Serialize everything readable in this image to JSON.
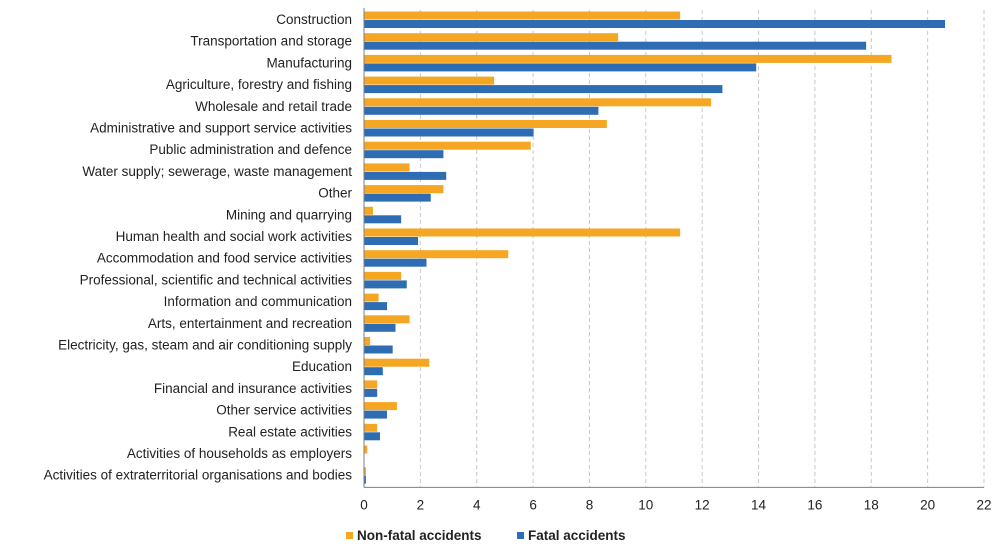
{
  "chart_data": {
    "type": "bar",
    "orientation": "horizontal",
    "categories": [
      "Construction",
      "Transportation and storage",
      "Manufacturing",
      "Agriculture, forestry and fishing",
      "Wholesale and retail trade",
      "Administrative and support service activities",
      "Public administration and defence",
      "Water supply; sewerage, waste management",
      "Other",
      "Mining and quarrying",
      "Human health and social work activities",
      "Accommodation and food service activities",
      "Professional, scientific and technical activities",
      "Information and communication",
      "Arts, entertainment and recreation",
      "Electricity, gas, steam and air conditioning supply",
      "Education",
      "Financial and insurance activities",
      "Other service activities",
      "Real estate activities",
      "Activities of households as employers",
      "Activities of extraterritorial organisations and bodies"
    ],
    "series": [
      {
        "name": "Non-fatal accidents",
        "color": "#F5A623",
        "values": [
          11.2,
          9.0,
          18.7,
          4.6,
          12.3,
          8.6,
          5.9,
          1.6,
          2.8,
          0.3,
          11.2,
          5.1,
          1.3,
          0.5,
          1.6,
          0.2,
          2.3,
          0.45,
          1.15,
          0.45,
          0.1,
          0.05
        ]
      },
      {
        "name": "Fatal accidents",
        "color": "#2E6DB4",
        "values": [
          20.6,
          17.8,
          13.9,
          12.7,
          8.3,
          6.0,
          2.8,
          2.9,
          2.35,
          1.3,
          1.9,
          2.2,
          1.5,
          0.8,
          1.1,
          1.0,
          0.65,
          0.45,
          0.8,
          0.55,
          0.0,
          0.05
        ]
      }
    ],
    "xlim": [
      0,
      22
    ],
    "xticks": [
      0,
      2,
      4,
      6,
      8,
      10,
      12,
      14,
      16,
      18,
      20,
      22
    ],
    "grid": "vertical dashed",
    "legend_position": "bottom-left",
    "title": "",
    "xlabel": "",
    "ylabel": ""
  }
}
